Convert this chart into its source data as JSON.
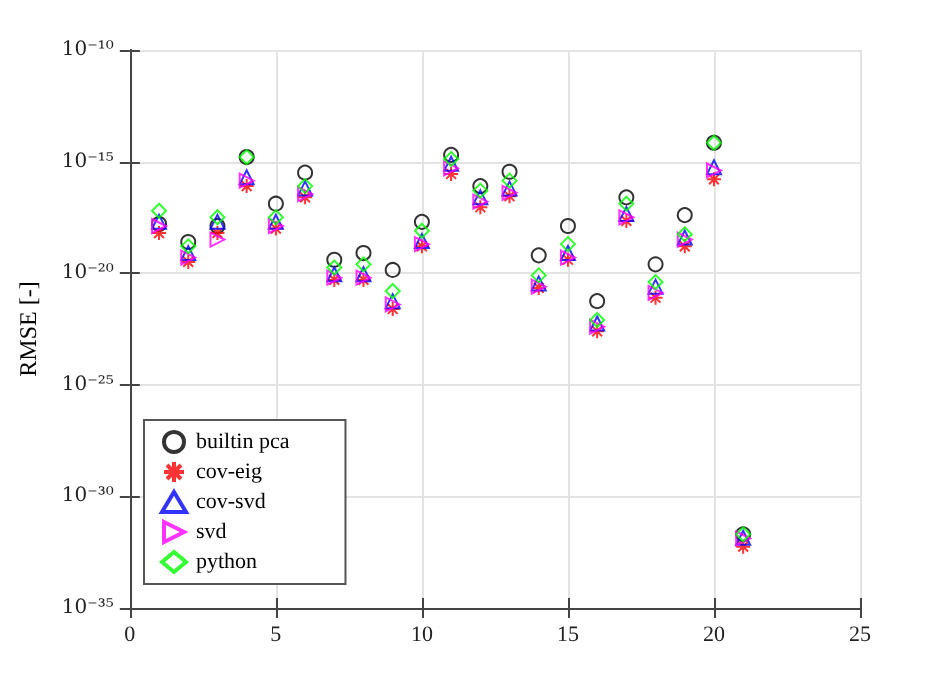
{
  "chart_data": {
    "type": "scatter",
    "ylabel": "RMSE [-]",
    "x": [
      1,
      2,
      3,
      4,
      5,
      6,
      7,
      8,
      9,
      10,
      11,
      12,
      13,
      14,
      15,
      16,
      17,
      18,
      19,
      20,
      21
    ],
    "series": [
      {
        "name": "builtin pca",
        "color": "#000000",
        "marker": "circle",
        "values": [
          1.6e-18,
          2.5e-19,
          1.3e-18,
          1.6e-15,
          1.3e-17,
          3.2e-16,
          4e-20,
          8e-20,
          1.4e-20,
          2e-18,
          2e-15,
          8e-17,
          3.5e-16,
          6.3e-20,
          1.3e-18,
          5.6e-22,
          2.5e-17,
          2.5e-20,
          4e-18,
          7e-15,
          2e-32
        ]
      },
      {
        "name": "cov-eig",
        "color": "#ff0000",
        "marker": "cross",
        "values": [
          6.3e-19,
          3.2e-20,
          6.3e-19,
          8e-17,
          1e-18,
          2.5e-17,
          5e-21,
          5e-21,
          2.5e-22,
          1.6e-19,
          2.8e-16,
          9e-18,
          2.8e-17,
          2.2e-21,
          4e-20,
          2.5e-23,
          2.2e-18,
          8e-22,
          1.6e-19,
          1.6e-16,
          5.6e-33
        ]
      },
      {
        "name": "cov-svd",
        "color": "#0000ff",
        "marker": "triangle",
        "values": [
          2e-18,
          8e-20,
          2e-18,
          2e-16,
          2e-18,
          6.3e-17,
          9e-21,
          9e-21,
          5.6e-22,
          2.8e-19,
          8e-16,
          2.5e-17,
          6.3e-17,
          3.5e-21,
          8e-20,
          5.6e-23,
          4.5e-18,
          2.5e-21,
          4e-19,
          5.6e-16,
          1.4e-32
        ]
      },
      {
        "name": "svd",
        "color": "#ff00ff",
        "marker": "triangle-right",
        "values": [
          1.3e-18,
          5e-20,
          3.2e-19,
          1.4e-16,
          1.3e-18,
          3.5e-17,
          6.3e-21,
          6.3e-21,
          4e-22,
          2e-19,
          5e-16,
          1.6e-17,
          4e-17,
          2.5e-21,
          5e-20,
          4e-23,
          3.2e-18,
          1.3e-21,
          3.2e-19,
          4e-16,
          1.3e-32
        ]
      },
      {
        "name": "python",
        "color": "#00ff00",
        "marker": "diamond",
        "values": [
          6.3e-18,
          1.6e-19,
          3.2e-18,
          1.6e-15,
          3.2e-18,
          8e-17,
          1.8e-20,
          2.5e-20,
          1.6e-21,
          8e-19,
          1.3e-15,
          5e-17,
          1.4e-16,
          8e-21,
          2e-19,
          8e-23,
          1.3e-17,
          4e-21,
          5.6e-19,
          7e-15,
          2e-32
        ]
      }
    ],
    "xlim": [
      0,
      25
    ],
    "xticks": [
      0,
      5,
      10,
      15,
      20,
      25
    ],
    "ylim": [
      1e-35,
      1e-10
    ],
    "yticks": [
      {
        "value": 1e-35,
        "label": "10⁻³⁵"
      },
      {
        "value": 1e-30,
        "label": "10⁻³⁰"
      },
      {
        "value": 1e-25,
        "label": "10⁻²⁵"
      },
      {
        "value": 1e-20,
        "label": "10⁻²⁰"
      },
      {
        "value": 1e-15,
        "label": "10⁻¹⁵"
      },
      {
        "value": 1e-10,
        "label": "10⁻¹⁰"
      }
    ],
    "log": "y",
    "grid": true,
    "legend": "bottom left"
  }
}
